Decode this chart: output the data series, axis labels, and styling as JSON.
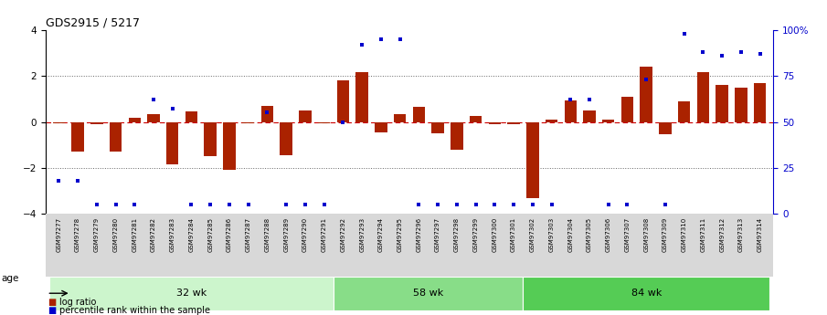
{
  "title": "GDS2915 / 5217",
  "samples": [
    "GSM97277",
    "GSM97278",
    "GSM97279",
    "GSM97280",
    "GSM97281",
    "GSM97282",
    "GSM97283",
    "GSM97284",
    "GSM97285",
    "GSM97286",
    "GSM97287",
    "GSM97288",
    "GSM97289",
    "GSM97290",
    "GSM97291",
    "GSM97292",
    "GSM97293",
    "GSM97294",
    "GSM97295",
    "GSM97296",
    "GSM97297",
    "GSM97298",
    "GSM97299",
    "GSM97300",
    "GSM97301",
    "GSM97302",
    "GSM97303",
    "GSM97304",
    "GSM97305",
    "GSM97306",
    "GSM97307",
    "GSM97308",
    "GSM97309",
    "GSM97310",
    "GSM97311",
    "GSM97312",
    "GSM97313",
    "GSM97314"
  ],
  "log_ratio": [
    -0.05,
    -1.3,
    -0.1,
    -1.3,
    0.2,
    0.35,
    -1.85,
    0.45,
    -1.5,
    -2.1,
    -0.05,
    0.7,
    -1.45,
    0.5,
    -0.05,
    1.8,
    2.15,
    -0.45,
    0.35,
    0.65,
    -0.5,
    -1.2,
    0.25,
    -0.1,
    -0.1,
    -3.3,
    0.1,
    0.95,
    0.5,
    0.1,
    1.1,
    2.4,
    -0.55,
    0.9,
    2.15,
    1.6,
    1.5,
    1.7
  ],
  "percentile": [
    18,
    18,
    5,
    5,
    5,
    62,
    57,
    5,
    5,
    5,
    5,
    55,
    5,
    5,
    5,
    50,
    92,
    95,
    95,
    5,
    5,
    5,
    5,
    5,
    5,
    5,
    5,
    62,
    62,
    5,
    5,
    73,
    5,
    98,
    88,
    86,
    88,
    87
  ],
  "groups": [
    {
      "label": "32 wk",
      "start": 0,
      "end": 15,
      "color": "#ccf5cc"
    },
    {
      "label": "58 wk",
      "start": 15,
      "end": 25,
      "color": "#88dd88"
    },
    {
      "label": "84 wk",
      "start": 25,
      "end": 38,
      "color": "#55cc55"
    }
  ],
  "bar_color": "#aa2200",
  "dot_color": "#0000cc",
  "zero_line_color": "#cc0000",
  "dotted_line_color": "#666666",
  "bg_color": "#ffffff",
  "xtick_bg": "#dddddd",
  "ylim": [
    -4,
    4
  ],
  "y2lim": [
    0,
    100
  ],
  "yticks_left": [
    -4,
    -2,
    0,
    2,
    4
  ],
  "yticks_right": [
    0,
    25,
    50,
    75,
    100
  ],
  "ytick_right_labels": [
    "0",
    "25",
    "50",
    "75",
    "100%"
  ],
  "dotted_lines": [
    -2,
    2
  ],
  "age_label": "age",
  "legend_bar_label": "log ratio",
  "legend_dot_label": "percentile rank within the sample"
}
